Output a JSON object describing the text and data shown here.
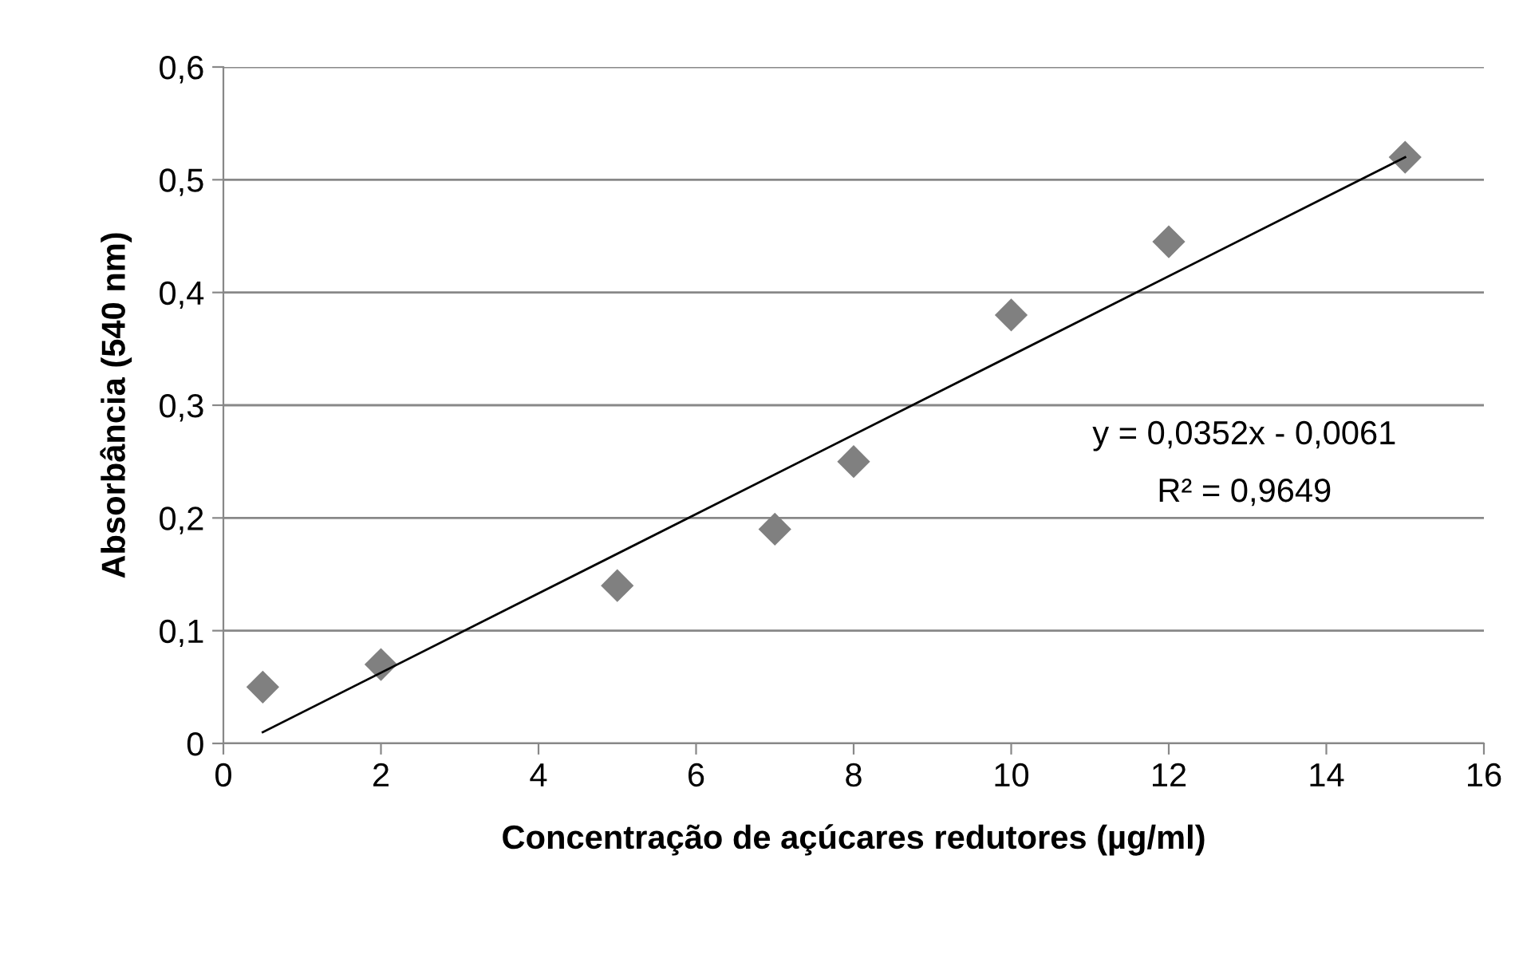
{
  "chart_data": {
    "type": "scatter",
    "xlabel": "Concentração de açúcares redutores (µg/ml)",
    "ylabel": "Absorbância (540 nm)",
    "x": [
      0.5,
      2,
      5,
      7,
      8,
      10,
      12,
      15
    ],
    "series": [
      {
        "color": "#808080",
        "marker": "diamond",
        "values": [
          0.05,
          0.07,
          0.14,
          0.19,
          0.25,
          0.38,
          0.445,
          0.52
        ]
      },
      {
        "type": "line",
        "color": "#000000",
        "marker": "none",
        "x": [
          0.5,
          15
        ],
        "values": [
          0.01,
          0.52
        ]
      }
    ],
    "annotations": [
      "y = 0,0352x - 0,0061",
      "R² = 0,9649"
    ],
    "xlim": [
      0,
      16
    ],
    "xticks": [
      0,
      2,
      4,
      6,
      8,
      10,
      12,
      14,
      16
    ],
    "ylim": [
      0,
      0.6
    ],
    "yticks": [
      0,
      {
        "value": 0.1,
        "label": "0,1"
      },
      {
        "value": 0.2,
        "label": "0,2"
      },
      {
        "value": 0.3,
        "label": "0,3"
      },
      {
        "value": 0.4,
        "label": "0,4"
      },
      {
        "value": 0.5,
        "label": "0,5"
      },
      {
        "value": 0.6,
        "label": "0,6"
      }
    ],
    "grid": "y",
    "legend": false
  }
}
